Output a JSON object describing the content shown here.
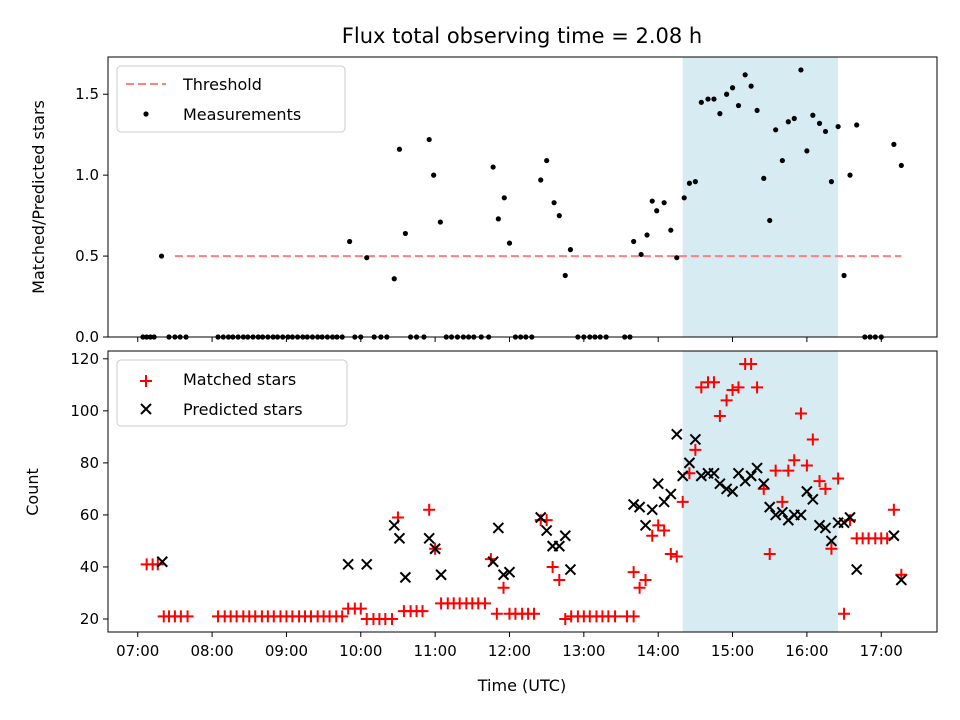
{
  "title": "Flux total observing time = 2.08 h",
  "x_ticks": [
    "07:00",
    "08:00",
    "09:00",
    "10:00",
    "11:00",
    "12:00",
    "13:00",
    "14:00",
    "15:00",
    "16:00",
    "17:00"
  ],
  "xlabel": "Time (UTC)",
  "colors": {
    "threshold": "#ff7f7f",
    "matched": "#ff0000",
    "predicted": "#000000",
    "span": "#add8e6"
  },
  "chart_data": [
    {
      "type": "scatter",
      "panel": "top",
      "ylabel": "Matched/Predicted stars",
      "ylim": [
        0,
        1.73
      ],
      "yticks": [
        "0.0",
        "0.5",
        "1.0",
        "1.5"
      ],
      "ytick_values": [
        0,
        0.5,
        1.0,
        1.5
      ],
      "legend": [
        "Threshold",
        "Measurements"
      ],
      "legend_position": "top-left",
      "highlight_span_hours": [
        14.33,
        16.42
      ],
      "threshold": {
        "value": 0.5,
        "x_range_hours": [
          7.5,
          17.27
        ]
      },
      "measurements": [
        [
          7.07,
          0
        ],
        [
          7.12,
          0
        ],
        [
          7.17,
          0
        ],
        [
          7.22,
          0
        ],
        [
          7.32,
          0.5
        ],
        [
          7.42,
          0
        ],
        [
          7.5,
          0
        ],
        [
          7.57,
          0
        ],
        [
          7.65,
          0
        ],
        [
          8.08,
          0
        ],
        [
          8.15,
          0
        ],
        [
          8.22,
          0
        ],
        [
          8.28,
          0
        ],
        [
          8.35,
          0
        ],
        [
          8.42,
          0
        ],
        [
          8.48,
          0
        ],
        [
          8.55,
          0
        ],
        [
          8.62,
          0
        ],
        [
          8.68,
          0
        ],
        [
          8.75,
          0
        ],
        [
          8.82,
          0
        ],
        [
          8.88,
          0
        ],
        [
          8.95,
          0
        ],
        [
          9.02,
          0
        ],
        [
          9.08,
          0
        ],
        [
          9.15,
          0
        ],
        [
          9.22,
          0
        ],
        [
          9.28,
          0
        ],
        [
          9.35,
          0
        ],
        [
          9.42,
          0
        ],
        [
          9.48,
          0
        ],
        [
          9.55,
          0
        ],
        [
          9.62,
          0
        ],
        [
          9.68,
          0
        ],
        [
          9.75,
          0
        ],
        [
          9.85,
          0.59
        ],
        [
          9.92,
          0
        ],
        [
          10.0,
          0
        ],
        [
          10.08,
          0.49
        ],
        [
          10.18,
          0
        ],
        [
          10.27,
          0
        ],
        [
          10.35,
          0
        ],
        [
          10.45,
          0.36
        ],
        [
          10.52,
          1.16
        ],
        [
          10.6,
          0.64
        ],
        [
          10.67,
          0
        ],
        [
          10.75,
          0
        ],
        [
          10.85,
          0
        ],
        [
          10.92,
          1.22
        ],
        [
          10.98,
          1.0
        ],
        [
          11.07,
          0.71
        ],
        [
          11.15,
          0
        ],
        [
          11.22,
          0
        ],
        [
          11.3,
          0
        ],
        [
          11.38,
          0
        ],
        [
          11.45,
          0
        ],
        [
          11.52,
          0
        ],
        [
          11.62,
          0
        ],
        [
          11.72,
          0
        ],
        [
          11.78,
          1.05
        ],
        [
          11.85,
          0.73
        ],
        [
          11.93,
          0.86
        ],
        [
          12.0,
          0.58
        ],
        [
          12.08,
          0
        ],
        [
          12.15,
          0
        ],
        [
          12.22,
          0
        ],
        [
          12.3,
          0
        ],
        [
          12.42,
          0.97
        ],
        [
          12.5,
          1.09
        ],
        [
          12.6,
          0.83
        ],
        [
          12.67,
          0.75
        ],
        [
          12.75,
          0.38
        ],
        [
          12.82,
          0.54
        ],
        [
          12.92,
          0
        ],
        [
          13.0,
          0
        ],
        [
          13.08,
          0
        ],
        [
          13.15,
          0
        ],
        [
          13.22,
          0
        ],
        [
          13.3,
          0
        ],
        [
          13.55,
          0
        ],
        [
          13.62,
          0
        ],
        [
          13.67,
          0.59
        ],
        [
          13.77,
          0.51
        ],
        [
          13.85,
          0.63
        ],
        [
          13.92,
          0.84
        ],
        [
          13.98,
          0.78
        ],
        [
          14.08,
          0.83
        ],
        [
          14.17,
          0.66
        ],
        [
          14.25,
          0.49
        ],
        [
          14.35,
          0.86
        ],
        [
          14.42,
          0.95
        ],
        [
          14.5,
          0.96
        ],
        [
          14.58,
          1.45
        ],
        [
          14.67,
          1.47
        ],
        [
          14.75,
          1.47
        ],
        [
          14.83,
          1.38
        ],
        [
          14.92,
          1.5
        ],
        [
          15.0,
          1.54
        ],
        [
          15.08,
          1.43
        ],
        [
          15.17,
          1.62
        ],
        [
          15.25,
          1.55
        ],
        [
          15.33,
          1.4
        ],
        [
          15.42,
          0.98
        ],
        [
          15.5,
          0.72
        ],
        [
          15.58,
          1.28
        ],
        [
          15.67,
          1.09
        ],
        [
          15.75,
          1.33
        ],
        [
          15.83,
          1.35
        ],
        [
          15.92,
          1.65
        ],
        [
          16.0,
          1.15
        ],
        [
          16.08,
          1.37
        ],
        [
          16.17,
          1.32
        ],
        [
          16.25,
          1.27
        ],
        [
          16.33,
          0.96
        ],
        [
          16.42,
          1.3
        ],
        [
          16.5,
          0.38
        ],
        [
          16.58,
          1.0
        ],
        [
          16.67,
          1.31
        ],
        [
          16.78,
          0
        ],
        [
          16.85,
          0
        ],
        [
          16.92,
          0
        ],
        [
          17.0,
          0
        ],
        [
          17.17,
          1.19
        ],
        [
          17.27,
          1.06
        ]
      ]
    },
    {
      "type": "scatter",
      "panel": "bottom",
      "ylabel": "Count",
      "ylim": [
        15,
        123
      ],
      "yticks": [
        "20",
        "40",
        "60",
        "80",
        "100",
        "120"
      ],
      "ytick_values": [
        20,
        40,
        60,
        80,
        100,
        120
      ],
      "legend": [
        "Matched stars",
        "Predicted stars"
      ],
      "legend_position": "top-left",
      "highlight_span_hours": [
        14.33,
        16.42
      ],
      "series": [
        {
          "name": "Matched stars",
          "marker": "+",
          "points": [
            [
              7.12,
              41
            ],
            [
              7.2,
              41
            ],
            [
              7.27,
              41
            ],
            [
              7.35,
              21
            ],
            [
              7.42,
              21
            ],
            [
              7.5,
              21
            ],
            [
              7.58,
              21
            ],
            [
              7.67,
              21
            ],
            [
              8.08,
              21
            ],
            [
              8.17,
              21
            ],
            [
              8.25,
              21
            ],
            [
              8.33,
              21
            ],
            [
              8.42,
              21
            ],
            [
              8.5,
              21
            ],
            [
              8.58,
              21
            ],
            [
              8.67,
              21
            ],
            [
              8.75,
              21
            ],
            [
              8.83,
              21
            ],
            [
              8.92,
              21
            ],
            [
              9.0,
              21
            ],
            [
              9.08,
              21
            ],
            [
              9.17,
              21
            ],
            [
              9.25,
              21
            ],
            [
              9.33,
              21
            ],
            [
              9.42,
              21
            ],
            [
              9.5,
              21
            ],
            [
              9.58,
              21
            ],
            [
              9.67,
              21
            ],
            [
              9.75,
              21
            ],
            [
              9.83,
              24
            ],
            [
              9.92,
              24
            ],
            [
              10.0,
              24
            ],
            [
              10.08,
              20
            ],
            [
              10.17,
              20
            ],
            [
              10.25,
              20
            ],
            [
              10.33,
              20
            ],
            [
              10.42,
              20
            ],
            [
              10.5,
              59
            ],
            [
              10.58,
              23
            ],
            [
              10.67,
              23
            ],
            [
              10.75,
              23
            ],
            [
              10.83,
              23
            ],
            [
              10.92,
              62
            ],
            [
              11.0,
              47
            ],
            [
              11.08,
              26
            ],
            [
              11.17,
              26
            ],
            [
              11.25,
              26
            ],
            [
              11.33,
              26
            ],
            [
              11.42,
              26
            ],
            [
              11.5,
              26
            ],
            [
              11.58,
              26
            ],
            [
              11.67,
              26
            ],
            [
              11.75,
              43
            ],
            [
              11.83,
              22
            ],
            [
              11.92,
              32
            ],
            [
              12.0,
              22
            ],
            [
              12.08,
              22
            ],
            [
              12.17,
              22
            ],
            [
              12.25,
              22
            ],
            [
              12.33,
              22
            ],
            [
              12.42,
              58
            ],
            [
              12.5,
              58
            ],
            [
              12.58,
              40
            ],
            [
              12.67,
              35
            ],
            [
              12.75,
              20
            ],
            [
              12.83,
              21
            ],
            [
              12.92,
              21
            ],
            [
              13.0,
              21
            ],
            [
              13.08,
              21
            ],
            [
              13.17,
              21
            ],
            [
              13.25,
              21
            ],
            [
              13.33,
              21
            ],
            [
              13.42,
              21
            ],
            [
              13.58,
              21
            ],
            [
              13.67,
              21
            ],
            [
              13.67,
              38
            ],
            [
              13.75,
              32
            ],
            [
              13.83,
              35
            ],
            [
              13.92,
              52
            ],
            [
              14.0,
              56
            ],
            [
              14.08,
              54
            ],
            [
              14.17,
              45
            ],
            [
              14.25,
              44
            ],
            [
              14.33,
              65
            ],
            [
              14.42,
              76
            ],
            [
              14.5,
              85
            ],
            [
              14.58,
              109
            ],
            [
              14.67,
              111
            ],
            [
              14.75,
              111
            ],
            [
              14.83,
              98
            ],
            [
              14.92,
              104
            ],
            [
              15.0,
              108
            ],
            [
              15.08,
              109
            ],
            [
              15.17,
              118
            ],
            [
              15.25,
              118
            ],
            [
              15.33,
              109
            ],
            [
              15.42,
              70
            ],
            [
              15.5,
              45
            ],
            [
              15.58,
              77
            ],
            [
              15.67,
              65
            ],
            [
              15.75,
              77
            ],
            [
              15.83,
              81
            ],
            [
              15.92,
              99
            ],
            [
              16.0,
              79
            ],
            [
              16.08,
              89
            ],
            [
              16.17,
              73
            ],
            [
              16.25,
              70
            ],
            [
              16.33,
              47
            ],
            [
              16.42,
              74
            ],
            [
              16.5,
              22
            ],
            [
              16.58,
              58
            ],
            [
              16.67,
              51
            ],
            [
              16.75,
              51
            ],
            [
              16.83,
              51
            ],
            [
              16.92,
              51
            ],
            [
              17.0,
              51
            ],
            [
              17.08,
              51
            ],
            [
              17.17,
              62
            ],
            [
              17.27,
              37
            ]
          ]
        },
        {
          "name": "Predicted stars",
          "marker": "x",
          "points": [
            [
              7.33,
              42
            ],
            [
              9.83,
              41
            ],
            [
              10.08,
              41
            ],
            [
              10.45,
              56
            ],
            [
              10.52,
              51
            ],
            [
              10.6,
              36
            ],
            [
              10.92,
              51
            ],
            [
              11.0,
              47
            ],
            [
              11.08,
              37
            ],
            [
              11.78,
              42
            ],
            [
              11.85,
              55
            ],
            [
              11.92,
              37
            ],
            [
              12.0,
              38
            ],
            [
              12.42,
              59
            ],
            [
              12.5,
              54
            ],
            [
              12.58,
              48
            ],
            [
              12.67,
              48
            ],
            [
              12.75,
              52
            ],
            [
              12.82,
              39
            ],
            [
              13.67,
              64
            ],
            [
              13.75,
              63
            ],
            [
              13.83,
              56
            ],
            [
              13.92,
              62
            ],
            [
              14.0,
              72
            ],
            [
              14.08,
              65
            ],
            [
              14.17,
              68
            ],
            [
              14.25,
              91
            ],
            [
              14.33,
              75
            ],
            [
              14.42,
              80
            ],
            [
              14.5,
              89
            ],
            [
              14.58,
              75
            ],
            [
              14.67,
              76
            ],
            [
              14.75,
              76
            ],
            [
              14.83,
              72
            ],
            [
              14.92,
              70
            ],
            [
              15.0,
              69
            ],
            [
              15.08,
              76
            ],
            [
              15.17,
              73
            ],
            [
              15.25,
              75
            ],
            [
              15.33,
              78
            ],
            [
              15.42,
              72
            ],
            [
              15.5,
              63
            ],
            [
              15.58,
              60
            ],
            [
              15.67,
              61
            ],
            [
              15.75,
              58
            ],
            [
              15.83,
              60
            ],
            [
              15.92,
              60
            ],
            [
              16.0,
              69
            ],
            [
              16.08,
              66
            ],
            [
              16.17,
              56
            ],
            [
              16.25,
              55
            ],
            [
              16.33,
              50
            ],
            [
              16.42,
              57
            ],
            [
              16.5,
              57
            ],
            [
              16.58,
              59
            ],
            [
              16.67,
              39
            ],
            [
              17.17,
              52
            ],
            [
              17.27,
              35
            ]
          ]
        }
      ]
    }
  ]
}
